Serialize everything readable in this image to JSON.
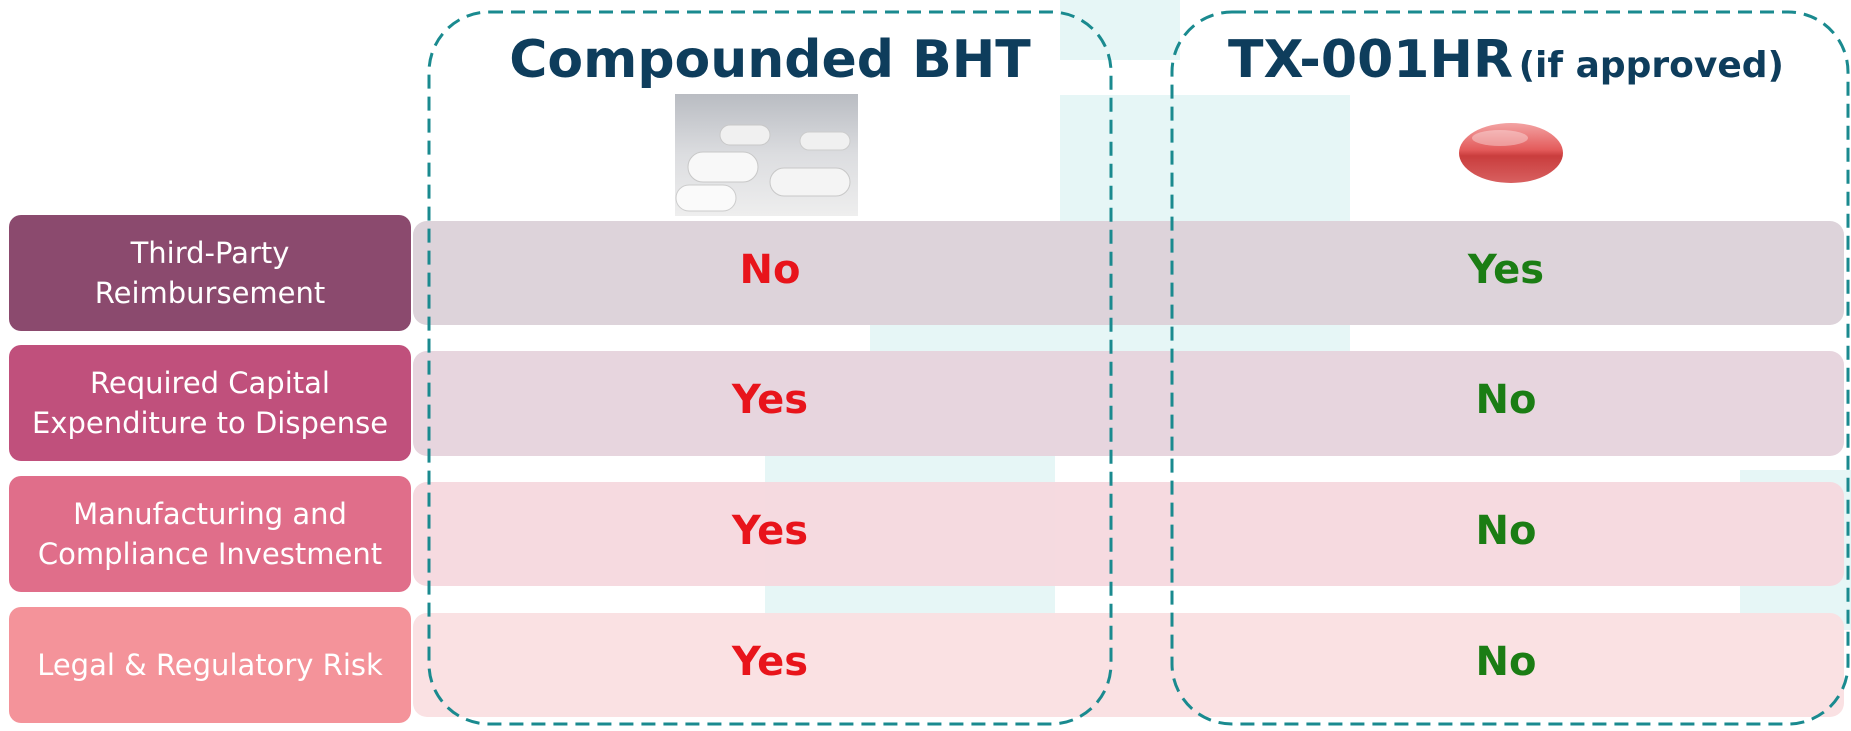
{
  "columns": [
    {
      "title": "Compounded BHT"
    },
    {
      "title": "TX-001HR",
      "note": "(if approved)"
    }
  ],
  "rows": [
    {
      "label": [
        "Third-Party",
        "Reimbursement"
      ],
      "values": [
        "No",
        "Yes"
      ]
    },
    {
      "label": [
        "Required Capital",
        "Expenditure to Dispense"
      ],
      "values": [
        "Yes",
        "No"
      ]
    },
    {
      "label": [
        "Manufacturing and",
        "Compliance Investment"
      ],
      "values": [
        "Yes",
        "No"
      ]
    },
    {
      "label": [
        "Legal & Regulatory Risk"
      ],
      "values": [
        "Yes",
        "No"
      ]
    }
  ]
}
